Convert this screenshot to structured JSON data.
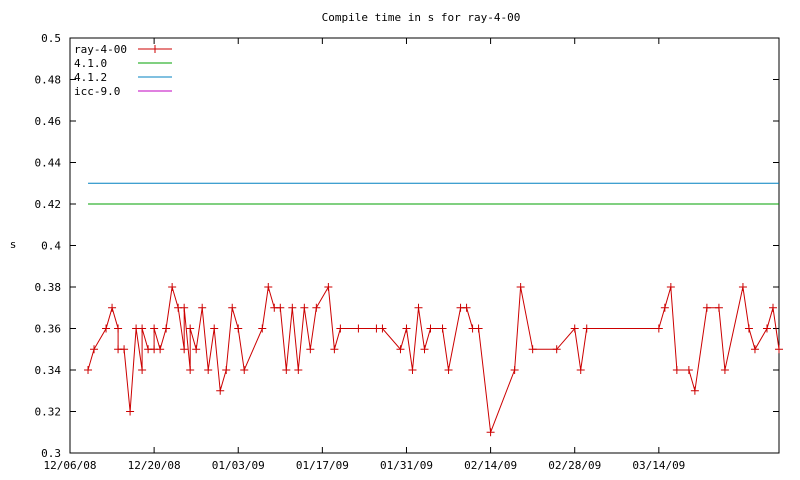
{
  "chart_data": {
    "type": "line",
    "title": "Compile time in s for ray-4-00",
    "xlabel": "",
    "ylabel": "s",
    "x_range": [
      "2008-12-06",
      "2009-04-03"
    ],
    "xticks": [
      "12/06/08",
      "12/20/08",
      "01/03/09",
      "01/17/09",
      "01/31/09",
      "02/14/09",
      "02/28/09",
      "03/14/09"
    ],
    "ylim": [
      0.3,
      0.5
    ],
    "yticks": [
      "0.3",
      "0.32",
      "0.34",
      "0.36",
      "0.38",
      "0.4",
      "0.42",
      "0.44",
      "0.46",
      "0.48",
      "0.5"
    ],
    "grid": false,
    "legend_position": "top-left",
    "series": [
      {
        "name": "ray-4-00",
        "color": "#cc0000",
        "marker": "plus",
        "points": [
          [
            "2008-12-09",
            0.34
          ],
          [
            "2008-12-10",
            0.35
          ],
          [
            "2008-12-12",
            0.36
          ],
          [
            "2008-12-13",
            0.37
          ],
          [
            "2008-12-14",
            0.36
          ],
          [
            "2008-12-14",
            0.35
          ],
          [
            "2008-12-15",
            0.35
          ],
          [
            "2008-12-16",
            0.32
          ],
          [
            "2008-12-17",
            0.36
          ],
          [
            "2008-12-18",
            0.34
          ],
          [
            "2008-12-18",
            0.36
          ],
          [
            "2008-12-19",
            0.35
          ],
          [
            "2008-12-20",
            0.35
          ],
          [
            "2008-12-20",
            0.36
          ],
          [
            "2008-12-21",
            0.35
          ],
          [
            "2008-12-22",
            0.36
          ],
          [
            "2008-12-23",
            0.38
          ],
          [
            "2008-12-24",
            0.37
          ],
          [
            "2008-12-25",
            0.35
          ],
          [
            "2008-12-25",
            0.37
          ],
          [
            "2008-12-26",
            0.34
          ],
          [
            "2008-12-26",
            0.36
          ],
          [
            "2008-12-27",
            0.35
          ],
          [
            "2008-12-28",
            0.37
          ],
          [
            "2008-12-29",
            0.34
          ],
          [
            "2008-12-30",
            0.36
          ],
          [
            "2008-12-31",
            0.33
          ],
          [
            "2009-01-01",
            0.34
          ],
          [
            "2009-01-02",
            0.37
          ],
          [
            "2009-01-03",
            0.36
          ],
          [
            "2009-01-04",
            0.34
          ],
          [
            "2009-01-07",
            0.36
          ],
          [
            "2009-01-08",
            0.38
          ],
          [
            "2009-01-09",
            0.37
          ],
          [
            "2009-01-10",
            0.37
          ],
          [
            "2009-01-11",
            0.34
          ],
          [
            "2009-01-12",
            0.37
          ],
          [
            "2009-01-13",
            0.34
          ],
          [
            "2009-01-14",
            0.37
          ],
          [
            "2009-01-15",
            0.35
          ],
          [
            "2009-01-16",
            0.37
          ],
          [
            "2009-01-18",
            0.38
          ],
          [
            "2009-01-19",
            0.35
          ],
          [
            "2009-01-20",
            0.36
          ],
          [
            "2009-01-23",
            0.36
          ],
          [
            "2009-01-26",
            0.36
          ],
          [
            "2009-01-27",
            0.36
          ],
          [
            "2009-01-30",
            0.35
          ],
          [
            "2009-01-31",
            0.36
          ],
          [
            "2009-02-01",
            0.34
          ],
          [
            "2009-02-02",
            0.37
          ],
          [
            "2009-02-03",
            0.35
          ],
          [
            "2009-02-04",
            0.36
          ],
          [
            "2009-02-06",
            0.36
          ],
          [
            "2009-02-07",
            0.34
          ],
          [
            "2009-02-09",
            0.37
          ],
          [
            "2009-02-10",
            0.37
          ],
          [
            "2009-02-11",
            0.36
          ],
          [
            "2009-02-12",
            0.36
          ],
          [
            "2009-02-14",
            0.31
          ],
          [
            "2009-02-18",
            0.34
          ],
          [
            "2009-02-19",
            0.38
          ],
          [
            "2009-02-21",
            0.35
          ],
          [
            "2009-02-25",
            0.35
          ],
          [
            "2009-02-28",
            0.36
          ],
          [
            "2009-03-01",
            0.34
          ],
          [
            "2009-03-02",
            0.36
          ],
          [
            "2009-03-14",
            0.36
          ],
          [
            "2009-03-15",
            0.37
          ],
          [
            "2009-03-16",
            0.38
          ],
          [
            "2009-03-17",
            0.34
          ],
          [
            "2009-03-19",
            0.34
          ],
          [
            "2009-03-20",
            0.33
          ],
          [
            "2009-03-22",
            0.37
          ],
          [
            "2009-03-24",
            0.37
          ],
          [
            "2009-03-25",
            0.34
          ],
          [
            "2009-03-28",
            0.38
          ],
          [
            "2009-03-29",
            0.36
          ],
          [
            "2009-03-30",
            0.35
          ],
          [
            "2009-04-01",
            0.36
          ],
          [
            "2009-04-02",
            0.37
          ],
          [
            "2009-04-03",
            0.35
          ]
        ]
      },
      {
        "name": "4.1.0",
        "color": "#00a000",
        "constant": 0.42
      },
      {
        "name": "4.1.2",
        "color": "#0080c0",
        "constant": 0.43
      },
      {
        "name": "icc-9.0",
        "color": "#c000c0",
        "constant": null
      }
    ]
  }
}
